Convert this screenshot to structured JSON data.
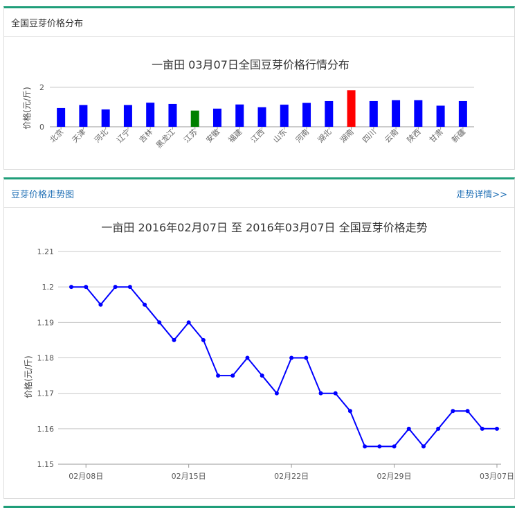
{
  "panel1": {
    "title": "全国豆芽价格分布"
  },
  "panel2": {
    "title": "豆芽价格走势图",
    "more_link": "走势详情>>"
  },
  "colors": {
    "accent": "#1f9e79",
    "link": "#1f6fb5",
    "bar_default": "#0000ff",
    "bar_max": "#ff0000",
    "bar_min": "#008000",
    "line": "#0000ff"
  },
  "chart_data": [
    {
      "type": "bar",
      "title": "一亩田 03月07日全国豆芽价格行情分布",
      "ylabel": "价格(元/斤)",
      "xlabel": "",
      "ylim": [
        0,
        2
      ],
      "yticks": [
        "0",
        "2"
      ],
      "grid": true,
      "categories": [
        "北京",
        "天津",
        "河北",
        "辽宁",
        "吉林",
        "黑龙江",
        "江苏",
        "安徽",
        "福建",
        "江西",
        "山东",
        "河南",
        "湖北",
        "湖南",
        "四川",
        "云南",
        "陕西",
        "甘肃",
        "新疆"
      ],
      "values": [
        0.95,
        1.1,
        0.88,
        1.1,
        1.22,
        1.16,
        0.82,
        0.92,
        1.13,
        0.99,
        1.12,
        1.21,
        1.3,
        1.85,
        1.3,
        1.35,
        1.35,
        1.07,
        1.3
      ],
      "highlight": {
        "max": "湖南",
        "min": "江苏"
      }
    },
    {
      "type": "line",
      "title": "一亩田 2016年02月07日 至 2016年03月07日 全国豆芽价格走势",
      "ylabel": "价格(元/斤)",
      "xlabel": "",
      "ylim": [
        1.15,
        1.21
      ],
      "yticks": [
        "1.15",
        "1.16",
        "1.17",
        "1.18",
        "1.19",
        "1.2",
        "1.21"
      ],
      "xticks": [
        "02月08日",
        "02月15日",
        "02月22日",
        "02月29日",
        "03月07日"
      ],
      "grid": true,
      "x": [
        "2016-02-07",
        "2016-02-08",
        "2016-02-09",
        "2016-02-10",
        "2016-02-11",
        "2016-02-12",
        "2016-02-13",
        "2016-02-14",
        "2016-02-15",
        "2016-02-16",
        "2016-02-17",
        "2016-02-18",
        "2016-02-19",
        "2016-02-20",
        "2016-02-21",
        "2016-02-22",
        "2016-02-23",
        "2016-02-24",
        "2016-02-25",
        "2016-02-26",
        "2016-02-27",
        "2016-02-28",
        "2016-02-29",
        "2016-03-01",
        "2016-03-02",
        "2016-03-03",
        "2016-03-04",
        "2016-03-05",
        "2016-03-06",
        "2016-03-07"
      ],
      "values": [
        1.2,
        1.2,
        1.195,
        1.2,
        1.2,
        1.195,
        1.19,
        1.185,
        1.19,
        1.185,
        1.175,
        1.175,
        1.18,
        1.175,
        1.17,
        1.18,
        1.18,
        1.17,
        1.17,
        1.165,
        1.155,
        1.155,
        1.155,
        1.16,
        1.155,
        1.16,
        1.165,
        1.165,
        1.16,
        1.16
      ]
    }
  ]
}
